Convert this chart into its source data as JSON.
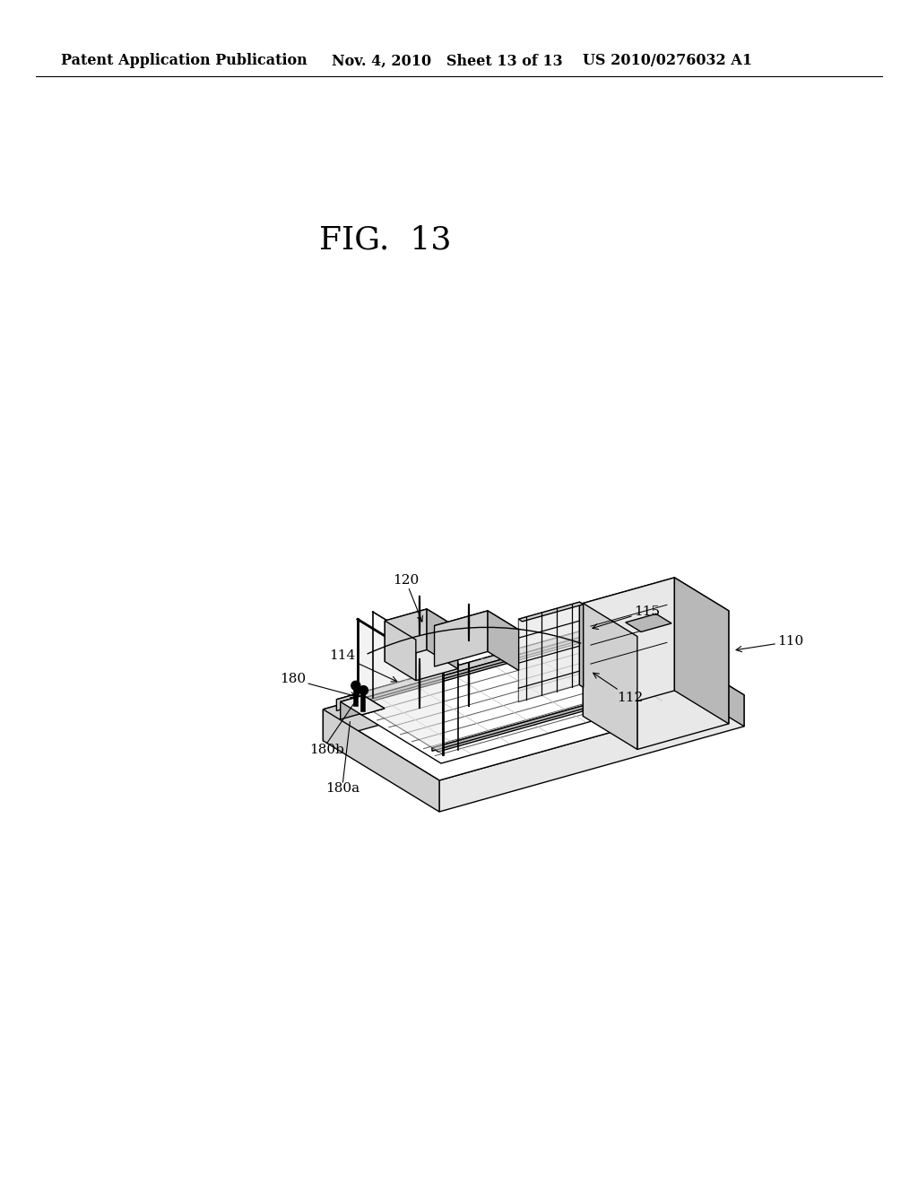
{
  "background_color": "#ffffff",
  "header_left": "Patent Application Publication",
  "header_middle": "Nov. 4, 2010   Sheet 13 of 13",
  "header_right": "US 2010/0276032 A1",
  "figure_label": "FIG.  13",
  "label_fontsize": 11,
  "header_fontsize": 11.5,
  "fig_label_fontsize": 26
}
